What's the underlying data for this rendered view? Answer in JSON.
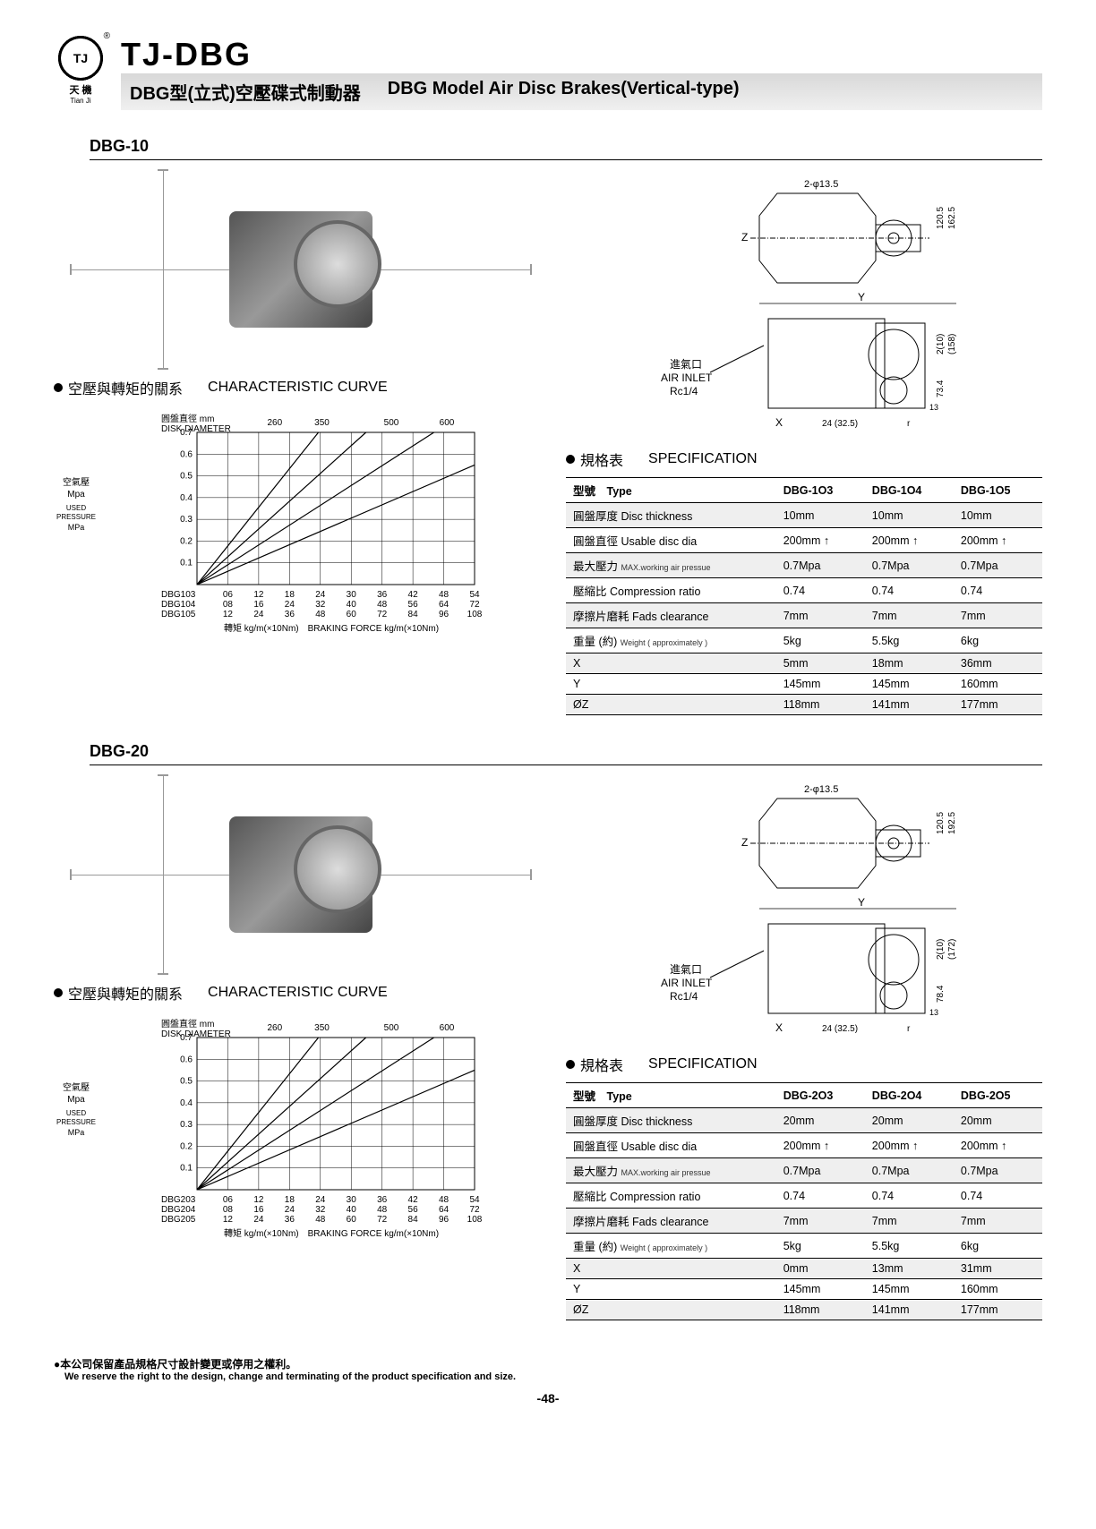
{
  "header": {
    "logo_text": "TJ",
    "logo_sub_cn": "天 機",
    "logo_sub_en": "Tian Ji",
    "trademark": "®",
    "main_title": "TJ-DBG",
    "subtitle_cn": "DBG型(立式)空壓碟式制動器",
    "subtitle_en": "DBG Model Air Disc Brakes(Vertical-type)"
  },
  "sections": [
    {
      "id": "dbg10",
      "model": "DBG-10",
      "chart_heading_cn": "空壓與轉矩的關系",
      "chart_heading_en": "CHARACTERISTIC CURVE",
      "chart": {
        "type": "line",
        "ylabel_cn1": "空氣壓",
        "ylabel_cn2": "Mpa",
        "ylabel_en1": "USED PRESSURE",
        "ylabel_en2": "MPa",
        "ytop_cn": "圓盤直徑 mm",
        "ytop_en": "DISK DIAMETER",
        "ylim": [
          0,
          0.7
        ],
        "yticks": [
          0.1,
          0.2,
          0.3,
          0.4,
          0.5,
          0.6,
          0.7
        ],
        "top_labels": [
          260,
          350,
          500,
          600
        ],
        "top_positions": [
          0.28,
          0.45,
          0.7,
          0.9
        ],
        "series": [
          {
            "label": "DBG103",
            "xvals": [
              "06",
              "12",
              "18",
              "24",
              "30",
              "36",
              "42",
              "48",
              "54"
            ],
            "slope": 1.15
          },
          {
            "label": "DBG104",
            "xvals": [
              "08",
              "16",
              "24",
              "32",
              "40",
              "48",
              "56",
              "64",
              "72"
            ],
            "slope": 0.82
          },
          {
            "label": "DBG105",
            "xvals": [
              "12",
              "24",
              "36",
              "48",
              "60",
              "72",
              "84",
              "96",
              "108"
            ],
            "slope": 0.55
          }
        ],
        "diag_lines": [
          1.6,
          1.15,
          0.82,
          0.55
        ],
        "xlabel_cn": "轉矩 kg/m(×10Nm)",
        "xlabel_en": "BRAKING FORCE kg/m(×10Nm)",
        "grid_color": "#000000",
        "line_color": "#000000",
        "background_color": "#ffffff"
      },
      "drawing": {
        "top_dim": "2-φ13.5",
        "z_label": "Z",
        "y_label": "Y",
        "x_label": "X",
        "air_inlet_cn": "進氣口",
        "air_inlet_en": "AIR INLET",
        "air_inlet_size": "Rc1/4",
        "dims_right1": "120.5",
        "dims_right2": "162.5",
        "dims_right3": "73.4",
        "dims_right4": "(158)",
        "dims_right5": "2(10)",
        "dims_right6": "13",
        "dims_bottom1": "24",
        "dims_bottom2": "32.5",
        "dims_bottom_r": "r"
      },
      "spec_heading_cn": "規格表",
      "spec_heading_en": "SPECIFICATION",
      "spec": {
        "type_label_cn": "型號",
        "type_label_en": "Type",
        "columns": [
          "DBG-1O3",
          "DBG-1O4",
          "DBG-1O5"
        ],
        "rows": [
          {
            "cn": "圓盤厚度",
            "en": "Disc thickness",
            "vals": [
              "10mm",
              "10mm",
              "10mm"
            ],
            "shade": true
          },
          {
            "cn": "圓盤直徑",
            "en": "Usable disc dia",
            "vals": [
              "200mm ↑",
              "200mm ↑",
              "200mm ↑"
            ],
            "shade": false
          },
          {
            "cn": "最大壓力",
            "en": "MAX.working air pressue",
            "sub": true,
            "vals": [
              "0.7Mpa",
              "0.7Mpa",
              "0.7Mpa"
            ],
            "shade": true
          },
          {
            "cn": "壓縮比",
            "en": "Compression ratio",
            "vals": [
              "0.74",
              "0.74",
              "0.74"
            ],
            "shade": false
          },
          {
            "cn": "摩擦片磨耗",
            "en": "Fads clearance",
            "vals": [
              "7mm",
              "7mm",
              "7mm"
            ],
            "shade": true
          },
          {
            "cn": "重量 (約)",
            "en": "Weight ( approximately )",
            "sub": true,
            "vals": [
              "5kg",
              "5.5kg",
              "6kg"
            ],
            "shade": false
          },
          {
            "cn": "X",
            "en": "",
            "vals": [
              "5mm",
              "18mm",
              "36mm"
            ],
            "shade": true
          },
          {
            "cn": "Y",
            "en": "",
            "vals": [
              "145mm",
              "145mm",
              "160mm"
            ],
            "shade": false
          },
          {
            "cn": "ØZ",
            "en": "",
            "vals": [
              "118mm",
              "141mm",
              "177mm"
            ],
            "shade": true
          }
        ]
      }
    },
    {
      "id": "dbg20",
      "model": "DBG-20",
      "chart_heading_cn": "空壓與轉矩的關系",
      "chart_heading_en": "CHARACTERISTIC CURVE",
      "chart": {
        "type": "line",
        "ylabel_cn1": "空氣壓",
        "ylabel_cn2": "Mpa",
        "ylabel_en1": "USED PRESSURE",
        "ylabel_en2": "MPa",
        "ytop_cn": "圓盤直徑 mm",
        "ytop_en": "DISK DIAMETER",
        "ylim": [
          0,
          0.7
        ],
        "yticks": [
          0.1,
          0.2,
          0.3,
          0.4,
          0.5,
          0.6,
          0.7
        ],
        "top_labels": [
          260,
          350,
          500,
          600
        ],
        "top_positions": [
          0.28,
          0.45,
          0.7,
          0.9
        ],
        "series": [
          {
            "label": "DBG203",
            "xvals": [
              "06",
              "12",
              "18",
              "24",
              "30",
              "36",
              "42",
              "48",
              "54"
            ],
            "slope": 1.15
          },
          {
            "label": "DBG204",
            "xvals": [
              "08",
              "16",
              "24",
              "32",
              "40",
              "48",
              "56",
              "64",
              "72"
            ],
            "slope": 0.82
          },
          {
            "label": "DBG205",
            "xvals": [
              "12",
              "24",
              "36",
              "48",
              "60",
              "72",
              "84",
              "96",
              "108"
            ],
            "slope": 0.55
          }
        ],
        "diag_lines": [
          1.6,
          1.15,
          0.82,
          0.55
        ],
        "xlabel_cn": "轉矩 kg/m(×10Nm)",
        "xlabel_en": "BRAKING FORCE kg/m(×10Nm)",
        "grid_color": "#000000",
        "line_color": "#000000",
        "background_color": "#ffffff"
      },
      "drawing": {
        "top_dim": "2-φ13.5",
        "z_label": "Z",
        "y_label": "Y",
        "x_label": "X",
        "air_inlet_cn": "進氣口",
        "air_inlet_en": "AIR INLET",
        "air_inlet_size": "Rc1/4",
        "dims_right1": "120.5",
        "dims_right2": "192.5",
        "dims_right3": "78.4",
        "dims_right4": "(172)",
        "dims_right5": "2(10)",
        "dims_right6": "13",
        "dims_bottom1": "24",
        "dims_bottom2": "32.5",
        "dims_bottom_r": "r"
      },
      "spec_heading_cn": "規格表",
      "spec_heading_en": "SPECIFICATION",
      "spec": {
        "type_label_cn": "型號",
        "type_label_en": "Type",
        "columns": [
          "DBG-2O3",
          "DBG-2O4",
          "DBG-2O5"
        ],
        "rows": [
          {
            "cn": "圓盤厚度",
            "en": "Disc thickness",
            "vals": [
              "20mm",
              "20mm",
              "20mm"
            ],
            "shade": true
          },
          {
            "cn": "圓盤直徑",
            "en": "Usable disc dia",
            "vals": [
              "200mm ↑",
              "200mm ↑",
              "200mm ↑"
            ],
            "shade": false
          },
          {
            "cn": "最大壓力",
            "en": "MAX.working air pressue",
            "sub": true,
            "vals": [
              "0.7Mpa",
              "0.7Mpa",
              "0.7Mpa"
            ],
            "shade": true
          },
          {
            "cn": "壓縮比",
            "en": "Compression ratio",
            "vals": [
              "0.74",
              "0.74",
              "0.74"
            ],
            "shade": false
          },
          {
            "cn": "摩擦片磨耗",
            "en": "Fads clearance",
            "vals": [
              "7mm",
              "7mm",
              "7mm"
            ],
            "shade": true
          },
          {
            "cn": "重量 (約)",
            "en": "Weight ( approximately )",
            "sub": true,
            "vals": [
              "5kg",
              "5.5kg",
              "6kg"
            ],
            "shade": false
          },
          {
            "cn": "X",
            "en": "",
            "vals": [
              "0mm",
              "13mm",
              "31mm"
            ],
            "shade": true
          },
          {
            "cn": "Y",
            "en": "",
            "vals": [
              "145mm",
              "145mm",
              "160mm"
            ],
            "shade": false
          },
          {
            "cn": "ØZ",
            "en": "",
            "vals": [
              "118mm",
              "141mm",
              "177mm"
            ],
            "shade": true
          }
        ]
      }
    }
  ],
  "footer": {
    "note_cn": "●本公司保留產品規格尺寸設計變更或停用之權利。",
    "note_en": "We reserve the right to the design, change and terminating of the product specification and size.",
    "page": "-48-"
  }
}
